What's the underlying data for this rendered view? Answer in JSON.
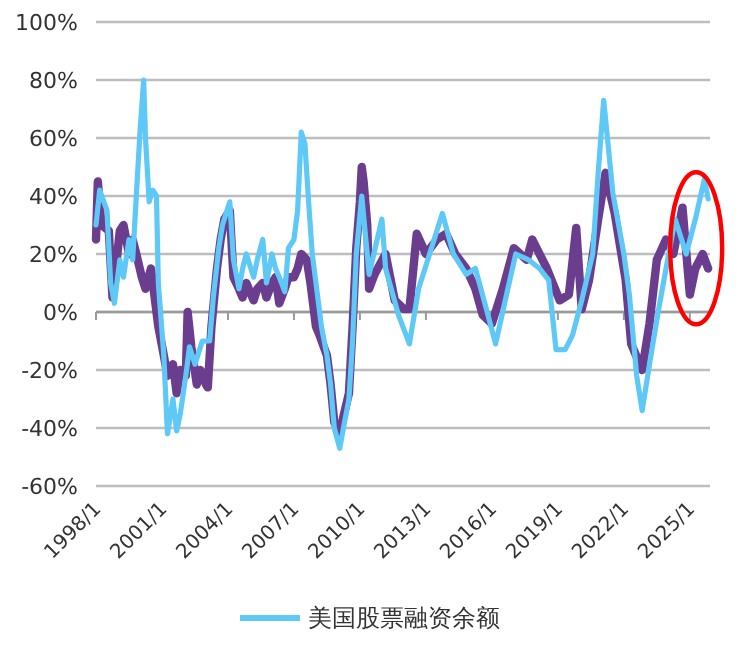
{
  "chart_data": {
    "type": "line",
    "xlim": [
      "1998-01",
      "2025-12"
    ],
    "xticks": [
      {
        "value": "1998-01",
        "label": "1998/1"
      },
      {
        "value": "2001-01",
        "label": "2001/1"
      },
      {
        "value": "2004-01",
        "label": "2004/1"
      },
      {
        "value": "2007-01",
        "label": "2007/1"
      },
      {
        "value": "2010-01",
        "label": "2010/1"
      },
      {
        "value": "2013-01",
        "label": "2013/1"
      },
      {
        "value": "2016-01",
        "label": "2016/1"
      },
      {
        "value": "2019-01",
        "label": "2019/1"
      },
      {
        "value": "2022-01",
        "label": "2022/1"
      },
      {
        "value": "2025-01",
        "label": "2025/1"
      }
    ],
    "ylim": [
      -60,
      100
    ],
    "yticks": [
      {
        "value": -60,
        "label": "-60%"
      },
      {
        "value": -40,
        "label": "-40%"
      },
      {
        "value": -20,
        "label": "-20%"
      },
      {
        "value": 0,
        "label": "0%"
      },
      {
        "value": 20,
        "label": "20%"
      },
      {
        "value": 40,
        "label": "40%"
      },
      {
        "value": 60,
        "label": "60%"
      },
      {
        "value": 80,
        "label": "80%"
      },
      {
        "value": 100,
        "label": "100%"
      }
    ],
    "grid": "y",
    "legend": "bottom",
    "marker": "none",
    "line_style": "solid",
    "series": [
      {
        "color": "#6b3d8e",
        "x": [
          "1998-01",
          "1998-02",
          "1998-04",
          "1998-08",
          "1998-10",
          "1998-11",
          "1999-02",
          "1999-04",
          "1999-07",
          "1999-09",
          "1999-11",
          "2000-02",
          "2000-04",
          "2000-07",
          "2000-09",
          "2000-11",
          "2001-02",
          "2001-04",
          "2001-07",
          "2001-09",
          "2001-11",
          "2002-02",
          "2002-03",
          "2002-05",
          "2002-08",
          "2002-10",
          "2003-01",
          "2003-02",
          "2003-04",
          "2003-07",
          "2003-09",
          "2003-11",
          "2004-02",
          "2004-04",
          "2004-07",
          "2004-09",
          "2004-11",
          "2005-03",
          "2005-05",
          "2005-08",
          "2005-10",
          "2006-01",
          "2006-03",
          "2006-05",
          "2006-08",
          "2006-10",
          "2007-01",
          "2007-03",
          "2007-05",
          "2007-08",
          "2007-10",
          "2008-01",
          "2008-03",
          "2008-07",
          "2008-09",
          "2008-11",
          "2009-02",
          "2009-04",
          "2009-07",
          "2009-09",
          "2009-11",
          "2010-01",
          "2010-02",
          "2010-03",
          "2010-05",
          "2010-06",
          "2010-09",
          "2011-03",
          "2011-08",
          "2012-01",
          "2012-04",
          "2012-08",
          "2013-01",
          "2013-07",
          "2013-12",
          "2014-05",
          "2014-11",
          "2015-04",
          "2015-08",
          "2016-01",
          "2016-07",
          "2017-01",
          "2017-08",
          "2017-11",
          "2018-07",
          "2019-02",
          "2019-07",
          "2019-11",
          "2020-02",
          "2020-06",
          "2020-11",
          "2021-03",
          "2021-08",
          "2022-02",
          "2022-05",
          "2022-11",
          "2023-03",
          "2023-07",
          "2023-12",
          "2024-04",
          "2024-09",
          "2025-01",
          "2025-04",
          "2025-08",
          "2025-11"
        ],
        "values": [
          25,
          45,
          30,
          28,
          5,
          10,
          28,
          30,
          20,
          25,
          20,
          12,
          8,
          15,
          5,
          -5,
          -15,
          -22,
          -18,
          -28,
          -20,
          -22,
          0,
          -12,
          -25,
          -20,
          -25,
          -26,
          -5,
          15,
          25,
          32,
          35,
          12,
          8,
          5,
          10,
          4,
          8,
          10,
          5,
          10,
          12,
          3,
          8,
          12,
          12,
          15,
          20,
          18,
          10,
          -5,
          -8,
          -15,
          -25,
          -38,
          -42,
          -36,
          -28,
          -5,
          22,
          38,
          50,
          45,
          30,
          8,
          13,
          20,
          4,
          1,
          1,
          27,
          20,
          25,
          27,
          20,
          15,
          8,
          -1,
          -4,
          8,
          22,
          18,
          25,
          15,
          4,
          6,
          29,
          1,
          11,
          32,
          48,
          34,
          11,
          -11,
          -20,
          -4,
          18,
          25,
          20,
          36,
          6,
          15,
          20,
          15
        ]
      },
      {
        "name": "美国股票融资余额",
        "color": "#5ec8f7",
        "x": [
          "1998-01",
          "1998-03",
          "1998-07",
          "1998-09",
          "1998-11",
          "1999-02",
          "1999-04",
          "1999-07",
          "1999-09",
          "1999-11",
          "2000-01",
          "2000-03",
          "2000-04",
          "2000-06",
          "2000-08",
          "2000-10",
          "2000-11",
          "2001-02",
          "2001-04",
          "2001-07",
          "2001-09",
          "2001-11",
          "2002-02",
          "2002-04",
          "2002-07",
          "2002-09",
          "2002-11",
          "2003-03",
          "2003-05",
          "2003-08",
          "2003-10",
          "2004-01",
          "2004-02",
          "2004-04",
          "2004-07",
          "2004-09",
          "2004-11",
          "2005-03",
          "2005-05",
          "2005-08",
          "2005-10",
          "2006-01",
          "2006-03",
          "2006-05",
          "2006-08",
          "2006-10",
          "2007-01",
          "2007-03",
          "2007-05",
          "2007-07",
          "2007-09",
          "2007-11",
          "2008-02",
          "2008-04",
          "2008-07",
          "2008-09",
          "2008-11",
          "2009-02",
          "2009-04",
          "2009-07",
          "2009-09",
          "2009-11",
          "2010-02",
          "2010-06",
          "2011-01",
          "2011-03",
          "2011-10",
          "2012-04",
          "2012-09",
          "2013-03",
          "2013-10",
          "2014-04",
          "2014-11",
          "2015-04",
          "2015-10",
          "2016-03",
          "2016-09",
          "2017-02",
          "2017-09",
          "2018-03",
          "2018-08",
          "2018-12",
          "2019-05",
          "2019-09",
          "2020-02",
          "2020-08",
          "2020-11",
          "2021-02",
          "2021-07",
          "2022-01",
          "2022-04",
          "2022-08",
          "2022-11",
          "2023-03",
          "2023-08",
          "2023-12",
          "2024-05",
          "2024-11",
          "2025-04",
          "2025-09",
          "2025-11"
        ],
        "values": [
          30,
          42,
          35,
          10,
          3,
          18,
          12,
          25,
          18,
          40,
          62,
          80,
          60,
          38,
          42,
          40,
          10,
          -15,
          -42,
          -30,
          -41,
          -35,
          -22,
          -12,
          -18,
          -14,
          -10,
          -10,
          5,
          22,
          30,
          36,
          38,
          18,
          8,
          15,
          20,
          12,
          18,
          25,
          10,
          20,
          15,
          12,
          7,
          22,
          25,
          35,
          62,
          58,
          38,
          20,
          5,
          -5,
          -15,
          -25,
          -40,
          -47,
          -40,
          -30,
          -10,
          20,
          40,
          13,
          32,
          15,
          -1,
          -11,
          8,
          20,
          34,
          20,
          13,
          15,
          1,
          -11,
          6,
          20,
          18,
          15,
          11,
          -13,
          -13,
          -8,
          4,
          20,
          48,
          73,
          41,
          20,
          6,
          -22,
          -34,
          -18,
          1,
          15,
          32,
          20,
          32,
          46,
          39
        ]
      }
    ]
  }
}
